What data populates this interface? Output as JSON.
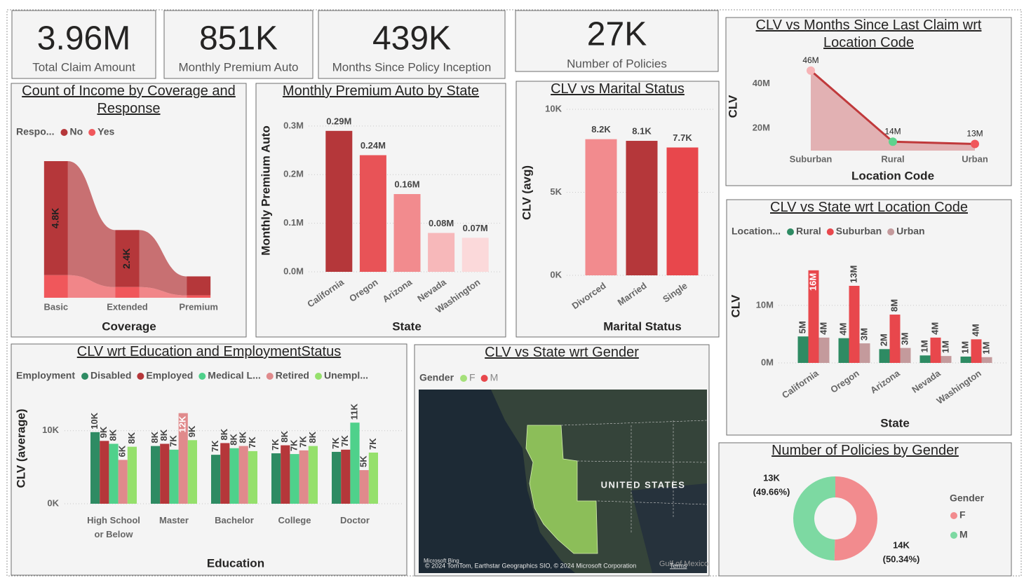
{
  "kpis": [
    {
      "value": "3.96M",
      "label": "Total Claim Amount"
    },
    {
      "value": "851K",
      "label": "Monthly Premium Auto"
    },
    {
      "value": "439K",
      "label": "Months Since Policy Inception"
    },
    {
      "value": "27K",
      "label": "Number of Policies"
    }
  ],
  "chart_data": [
    {
      "type": "ribbon",
      "title": "Count of Income by Coverage and Response",
      "legend_title": "Respo...",
      "x_label": "Coverage",
      "categories": [
        "Basic",
        "Extended",
        "Premium"
      ],
      "series": [
        {
          "name": "No",
          "color": "#b5373a",
          "values": [
            4800,
            2400,
            800
          ],
          "value_labels": [
            "4.8K",
            "2.4K",
            null
          ]
        },
        {
          "name": "Yes",
          "color": "#f0575b",
          "values": [
            950,
            450,
            100
          ]
        }
      ]
    },
    {
      "type": "bar",
      "title": "Monthly Premium Auto by State",
      "x_label": "State",
      "y_label": "Monthly Premium Auto",
      "categories": [
        "California",
        "Oregon",
        "Arizona",
        "Nevada",
        "Washington"
      ],
      "values": [
        290000,
        240000,
        160000,
        80000,
        70000
      ],
      "value_labels": [
        "0.29M",
        "0.24M",
        "0.16M",
        "0.08M",
        "0.07M"
      ],
      "colors": [
        "#b5373a",
        "#e85357",
        "#f28b8e",
        "#f7b8ba",
        "#fbd9da"
      ],
      "ylim": [
        0,
        320000
      ],
      "yticks": [
        {
          "value": 0,
          "label": "0.0M"
        },
        {
          "value": 100000,
          "label": "0.1M"
        },
        {
          "value": 200000,
          "label": "0.2M"
        },
        {
          "value": 300000,
          "label": "0.3M"
        }
      ],
      "grid": true
    },
    {
      "type": "bar",
      "title": "CLV vs Marital Status",
      "x_label": "Marital Status",
      "y_label": "CLV (avg)",
      "categories": [
        "Divorced",
        "Married",
        "Single"
      ],
      "values": [
        8200,
        8100,
        7700
      ],
      "value_labels": [
        "8.2K",
        "8.1K",
        "7.7K"
      ],
      "colors": [
        "#f28b8e",
        "#b5373a",
        "#e8474c"
      ],
      "ylim": [
        0,
        10000
      ],
      "yticks": [
        {
          "value": 0,
          "label": "0K"
        },
        {
          "value": 5000,
          "label": "5K"
        },
        {
          "value": 10000,
          "label": "10K"
        }
      ],
      "grid": true
    },
    {
      "type": "area",
      "title": "CLV vs Months Since Last Claim wrt Location Code",
      "x_label": "Location Code",
      "y_label": "CLV",
      "categories": [
        "Suburban",
        "Rural",
        "Urban"
      ],
      "values": [
        46000000,
        14000000,
        13000000
      ],
      "value_labels": [
        "46M",
        "14M",
        "13M"
      ],
      "color": "#c0393b",
      "fill": "#dea5a7",
      "marker_colors": [
        "#f7b3b6",
        "#5fd38d",
        "#f0575b"
      ],
      "ylim": [
        10000000,
        50000000
      ],
      "yticks": [
        {
          "value": 20000000,
          "label": "20M"
        },
        {
          "value": 40000000,
          "label": "40M"
        }
      ]
    },
    {
      "type": "grouped_bar",
      "title": "CLV vs State wrt Location Code",
      "legend_title": "Location...",
      "x_label": "State",
      "y_label": "CLV",
      "categories": [
        "California",
        "Oregon",
        "Arizona",
        "Nevada",
        "Washington"
      ],
      "series": [
        {
          "name": "Rural",
          "color": "#2e8b63",
          "values": [
            4600000,
            4300000,
            2400000,
            1300000,
            1100000
          ],
          "value_labels": [
            "5M",
            "4M",
            "2M",
            "1M",
            "1M"
          ]
        },
        {
          "name": "Suburban",
          "color": "#e8474c",
          "values": [
            16100000,
            13400000,
            8400000,
            4400000,
            4100000
          ],
          "value_labels": [
            "16M",
            "13M",
            "8M",
            "4M",
            "4M"
          ]
        },
        {
          "name": "Urban",
          "color": "#c49a9c",
          "values": [
            4400000,
            3400000,
            2600000,
            1200000,
            1000000
          ],
          "value_labels": [
            "4M",
            "3M",
            "3M",
            "1M",
            "1M"
          ]
        }
      ],
      "ylim": [
        0,
        19000000
      ],
      "yticks": [
        {
          "value": 0,
          "label": "0M"
        },
        {
          "value": 10000000,
          "label": "10M"
        }
      ],
      "grid": true
    },
    {
      "type": "grouped_bar",
      "title": "CLV wrt Education and EmploymentStatus",
      "legend_title": "Employment",
      "x_label": "Education",
      "y_label": "CLV (average)",
      "categories": [
        "High School or Below",
        "Master",
        "Bachelor",
        "College",
        "Doctor"
      ],
      "series": [
        {
          "name": "Disabled",
          "color": "#2e8b63",
          "values": [
            9800,
            7900,
            6700,
            6900,
            7100
          ],
          "value_labels": [
            "10K",
            "8K",
            "7K",
            "7K",
            "7K"
          ]
        },
        {
          "name": "Employed",
          "color": "#b5373a",
          "values": [
            8600,
            8200,
            8300,
            8000,
            7400
          ],
          "value_labels": [
            "9K",
            "8K",
            "8K",
            "8K",
            "7K"
          ]
        },
        {
          "name": "Medical L...",
          "color": "#4fd18b",
          "values": [
            8200,
            7400,
            7600,
            6800,
            11100
          ],
          "value_labels": [
            "8K",
            "7K",
            "8K",
            "7K",
            "11K"
          ]
        },
        {
          "name": "Retired",
          "color": "#e08a8c",
          "values": [
            6000,
            12400,
            7900,
            7300,
            4600
          ],
          "value_labels": [
            "6K",
            "12K",
            "8K",
            "7K",
            "5K"
          ]
        },
        {
          "name": "Unempl...",
          "color": "#95e06c",
          "values": [
            7800,
            8700,
            7200,
            7900,
            7000
          ],
          "value_labels": [
            "8K",
            "9K",
            "7K",
            "8K",
            "7K"
          ]
        }
      ],
      "ylim": [
        0,
        14000
      ],
      "yticks": [
        {
          "value": 0,
          "label": "0K"
        },
        {
          "value": 10000,
          "label": "10K"
        }
      ],
      "grid": true
    },
    {
      "type": "map",
      "title": "CLV vs State wrt Gender",
      "legend_title": "Gender",
      "series": [
        {
          "name": "F",
          "color": "#a5e07a"
        },
        {
          "name": "M",
          "color": "#e8474c"
        }
      ],
      "labels": {
        "country": "UNITED STATES",
        "gulf": "Gulf of Mexico",
        "logo": "Microsoft Bing",
        "attribution": "© 2024 TomTom, Earthstar Geographics SIO, © 2024 Microsoft Corporation",
        "terms": "Terms"
      }
    },
    {
      "type": "donut",
      "title": "Number of Policies by Gender",
      "legend_title": "Gender",
      "categories": [
        "F",
        "M"
      ],
      "colors": [
        "#f28b8e",
        "#7dd9a2"
      ],
      "values": [
        13592,
        13408
      ],
      "value_labels": [
        "14K",
        "13K"
      ],
      "percents": [
        50.34,
        49.66
      ],
      "percent_labels": [
        "(50.34%)",
        "(49.66%)"
      ]
    }
  ]
}
